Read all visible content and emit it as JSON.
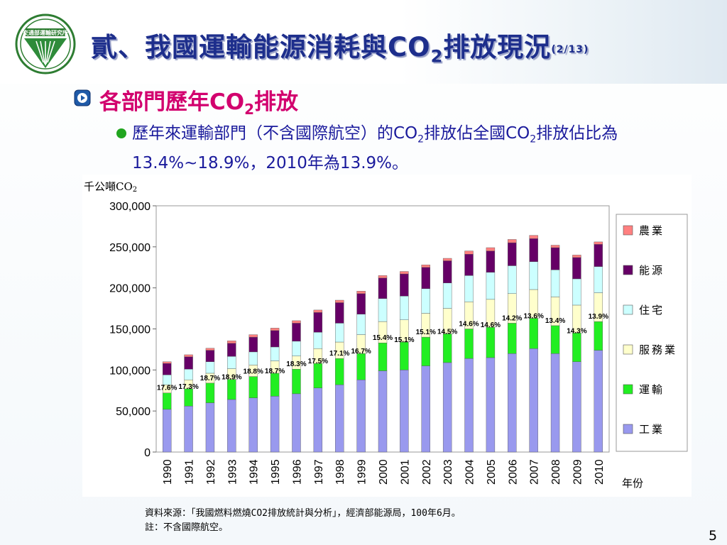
{
  "header": {
    "title_pre": "貳、我國運輸能源消耗與CO",
    "title_sub": "2",
    "title_post": "排放現況",
    "title_page": "(2/13)"
  },
  "bullet1": {
    "pre": "各部門歷年CO",
    "sub": "2",
    "post": "排放"
  },
  "bullet2": {
    "a": "歷年來運輸部門（不含國際航空）的CO",
    "b": "2",
    "c": "排放佔全國CO",
    "d": "2",
    "e": "排放佔比為13.4%~18.9%，2010年為13.9%。"
  },
  "footer": {
    "source": "資料來源：「我國燃料燃燒CO2排放統計與分析」，經濟部能源局，100年6月。",
    "note": "註：不含國際航空。"
  },
  "page_number": "5",
  "colors": {
    "industry": "#9999ee",
    "transport": "#22ee22",
    "service": "#ffffcc",
    "residential": "#ccffff",
    "energy": "#660066",
    "agriculture": "#ff8080"
  },
  "chart_data": {
    "type": "bar",
    "stacked": true,
    "y_unit_label": "千公噸CO",
    "y_unit_sub": "2",
    "xlabel": "年份",
    "ylim": [
      0,
      300000
    ],
    "yticks": [
      "0",
      "50,000",
      "100,000",
      "150,000",
      "200,000",
      "250,000",
      "300,000"
    ],
    "categories": [
      "1990",
      "1991",
      "1992",
      "1993",
      "1994",
      "1995",
      "1996",
      "1997",
      "1998",
      "1999",
      "2000",
      "2001",
      "2002",
      "2003",
      "2004",
      "2005",
      "2006",
      "2007",
      "2008",
      "2009",
      "2010"
    ],
    "series": [
      {
        "name": "工業",
        "values": [
          52000,
          56000,
          60000,
          64000,
          66000,
          68000,
          71000,
          78000,
          82000,
          88000,
          99000,
          100000,
          105000,
          109000,
          114000,
          115000,
          120000,
          126000,
          120000,
          110000,
          124000
        ]
      },
      {
        "name": "運輸",
        "values": [
          20000,
          21000,
          24000,
          24500,
          26000,
          28000,
          30000,
          30000,
          32000,
          32000,
          34000,
          34000,
          35000,
          35000,
          36000,
          37000,
          37000,
          37000,
          34000,
          35000,
          35000
        ]
      },
      {
        "name": "服務業",
        "values": [
          10000,
          11000,
          12000,
          13000,
          14000,
          15000,
          16000,
          18000,
          20000,
          23000,
          26000,
          27000,
          29000,
          31000,
          33000,
          34000,
          36000,
          35000,
          35000,
          34000,
          35000
        ]
      },
      {
        "name": "住宅",
        "values": [
          12000,
          13000,
          14000,
          15000,
          16000,
          17000,
          18000,
          20000,
          23000,
          25000,
          28000,
          29000,
          30000,
          31000,
          32000,
          33000,
          34000,
          34000,
          33000,
          32000,
          32000
        ]
      },
      {
        "name": "能源",
        "values": [
          14000,
          15000,
          14000,
          16000,
          18000,
          20000,
          22000,
          24000,
          25000,
          25000,
          25000,
          27000,
          26000,
          27000,
          26000,
          26000,
          28000,
          28000,
          27000,
          26000,
          27000
        ]
      },
      {
        "name": "農業",
        "values": [
          2000,
          2500,
          2500,
          3000,
          3000,
          3000,
          3000,
          3000,
          3000,
          3000,
          3000,
          3000,
          3000,
          3000,
          4000,
          4000,
          4000,
          4000,
          3000,
          3000,
          3000
        ]
      }
    ],
    "transport_share_labels": [
      "17.6%",
      "17.3%",
      "18.7%",
      "18.9%",
      "18.8%",
      "18.7%",
      "18.3%",
      "17.5%",
      "17.1%",
      "16.7%",
      "15.4%",
      "15.1%",
      "15.1%",
      "14.5%",
      "14.6%",
      "14.6%",
      "14.2%",
      "13.6%",
      "13.4%",
      "14.3%",
      "13.9%"
    ],
    "legend": [
      "農業",
      "能源",
      "住宅",
      "服務業",
      "運輸",
      "工業"
    ],
    "legend_position": "right",
    "grid": false
  }
}
